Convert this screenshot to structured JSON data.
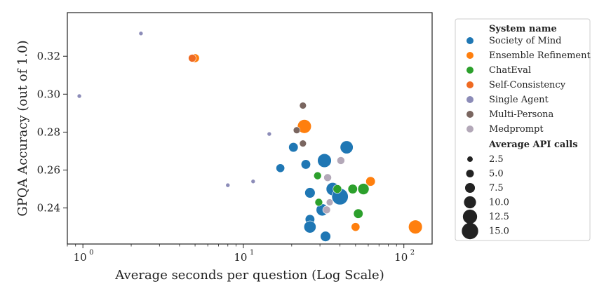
{
  "chart_data": {
    "type": "scatter",
    "xlabel": "Average seconds per question (Log Scale)",
    "ylabel": "GPQA Accuracy (out of 1.0)",
    "xscale": "log",
    "xlim": [
      0.8,
      150
    ],
    "ylim": [
      0.221,
      0.343
    ],
    "x_ticks": [
      {
        "value": 1,
        "base": "10",
        "exp": "0"
      },
      {
        "value": 10,
        "base": "10",
        "exp": "1"
      },
      {
        "value": 100,
        "base": "10",
        "exp": "2"
      }
    ],
    "y_ticks": [
      0.24,
      0.26,
      0.28,
      0.3,
      0.32
    ],
    "y_tick_labels": [
      "0.24",
      "0.26",
      "0.28",
      "0.30",
      "0.32"
    ],
    "grid": false,
    "legend": {
      "placement": "outside-right",
      "title": "System name",
      "size_title": "Average API calls",
      "size_entries": [
        "2.5",
        "5.0",
        "7.5",
        "10.0",
        "12.5",
        "15.0"
      ],
      "size_values": [
        2.5,
        5.0,
        7.5,
        10.0,
        12.5,
        15.0
      ]
    },
    "series": [
      {
        "name": "Society of Mind",
        "color": "#1f77b4",
        "points": [
          {
            "x": 17,
            "y": 0.261,
            "calls": 6
          },
          {
            "x": 20.5,
            "y": 0.272,
            "calls": 7
          },
          {
            "x": 24.5,
            "y": 0.263,
            "calls": 7
          },
          {
            "x": 26,
            "y": 0.248,
            "calls": 8
          },
          {
            "x": 26,
            "y": 0.234,
            "calls": 7
          },
          {
            "x": 26,
            "y": 0.23,
            "calls": 10
          },
          {
            "x": 31,
            "y": 0.239,
            "calls": 10
          },
          {
            "x": 32,
            "y": 0.265,
            "calls": 12
          },
          {
            "x": 32.5,
            "y": 0.225,
            "calls": 8
          },
          {
            "x": 36,
            "y": 0.25,
            "calls": 11
          },
          {
            "x": 40,
            "y": 0.246,
            "calls": 15
          },
          {
            "x": 44,
            "y": 0.272,
            "calls": 11
          }
        ]
      },
      {
        "name": "Ensemble Refinement",
        "color": "#ff7f0e",
        "points": [
          {
            "x": 5,
            "y": 0.319,
            "calls": 6
          },
          {
            "x": 24,
            "y": 0.283,
            "calls": 12
          },
          {
            "x": 50,
            "y": 0.23,
            "calls": 6
          },
          {
            "x": 62,
            "y": 0.254,
            "calls": 7
          },
          {
            "x": 118,
            "y": 0.23,
            "calls": 12
          }
        ]
      },
      {
        "name": "ChatEval",
        "color": "#2ca02c",
        "points": [
          {
            "x": 29,
            "y": 0.257,
            "calls": 5
          },
          {
            "x": 29.5,
            "y": 0.243,
            "calls": 5
          },
          {
            "x": 38.5,
            "y": 0.25,
            "calls": 6
          },
          {
            "x": 48,
            "y": 0.25,
            "calls": 7
          },
          {
            "x": 52,
            "y": 0.237,
            "calls": 7
          },
          {
            "x": 56,
            "y": 0.25,
            "calls": 9
          }
        ]
      },
      {
        "name": "Self-Consistency",
        "color": "#ef6a22",
        "points": [
          {
            "x": 4.8,
            "y": 0.319,
            "calls": 5
          }
        ]
      },
      {
        "name": "Single Agent",
        "color": "#8c8cb8",
        "points": [
          {
            "x": 0.95,
            "y": 0.299,
            "calls": 1
          },
          {
            "x": 2.3,
            "y": 0.332,
            "calls": 1
          },
          {
            "x": 8,
            "y": 0.252,
            "calls": 1
          },
          {
            "x": 11.5,
            "y": 0.254,
            "calls": 1
          },
          {
            "x": 14.5,
            "y": 0.279,
            "calls": 1
          }
        ]
      },
      {
        "name": "Multi-Persona",
        "color": "#7a6660",
        "points": [
          {
            "x": 21.5,
            "y": 0.281,
            "calls": 4
          },
          {
            "x": 23.5,
            "y": 0.294,
            "calls": 4
          },
          {
            "x": 23.5,
            "y": 0.274,
            "calls": 4
          }
        ]
      },
      {
        "name": "Medprompt",
        "color": "#b3a8b8",
        "points": [
          {
            "x": 33.5,
            "y": 0.256,
            "calls": 5
          },
          {
            "x": 34.5,
            "y": 0.243,
            "calls": 4
          },
          {
            "x": 33,
            "y": 0.239,
            "calls": 5
          },
          {
            "x": 40.5,
            "y": 0.265,
            "calls": 5
          }
        ]
      }
    ]
  }
}
